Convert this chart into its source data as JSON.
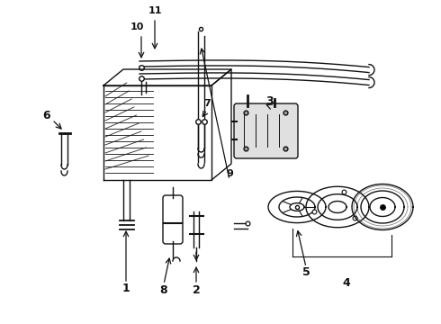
{
  "bg_color": "#ffffff",
  "line_color": "#111111",
  "figsize": [
    4.9,
    3.6
  ],
  "dpi": 100
}
